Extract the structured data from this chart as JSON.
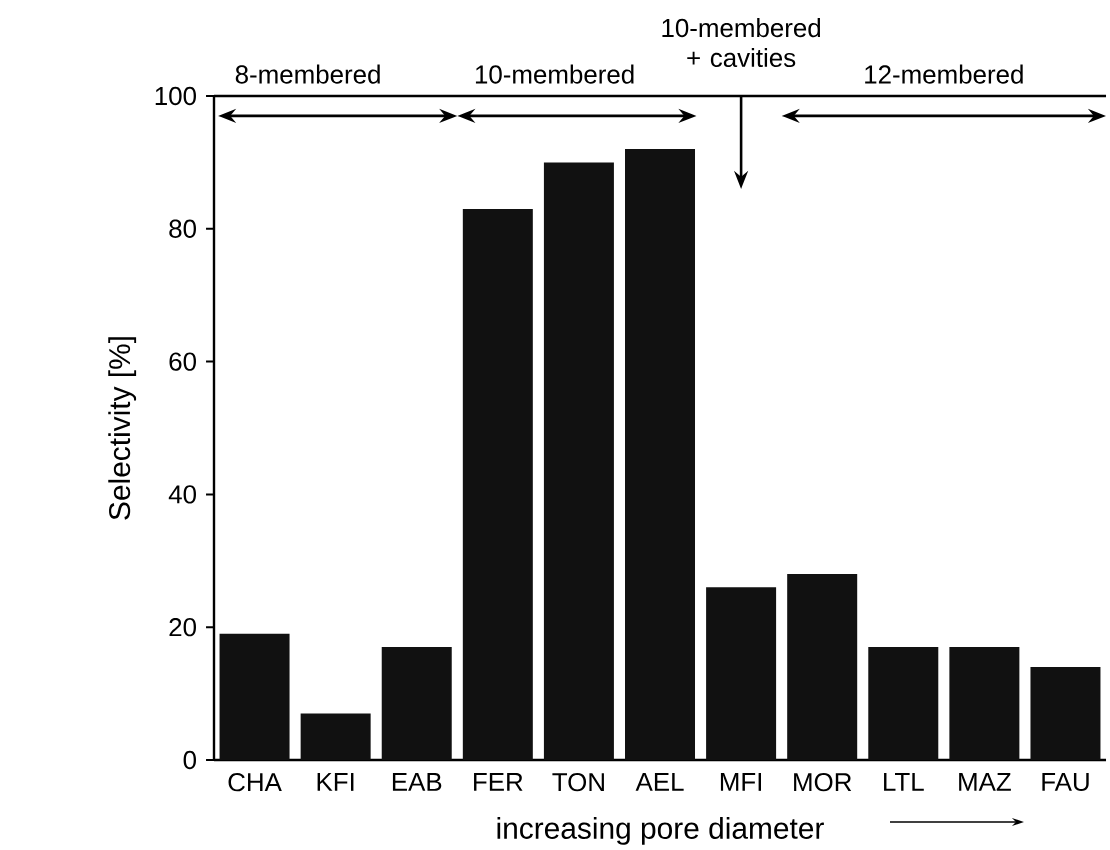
{
  "chart_data": {
    "type": "bar",
    "categories": [
      "CHA",
      "KFI",
      "EAB",
      "FER",
      "TON",
      "AEL",
      "MFI",
      "MOR",
      "LTL",
      "MAZ",
      "FAU"
    ],
    "values": [
      19,
      7,
      17,
      83,
      90,
      92,
      26,
      28,
      17,
      17,
      14
    ],
    "color": "#111111",
    "xlabel": "increasing pore diameter",
    "ylabel": "Selectivity [%]",
    "ylim": [
      0,
      100
    ],
    "yticks": [
      0,
      20,
      40,
      60,
      80,
      100
    ],
    "annotations": [
      "8-membered",
      "10-membered",
      "10-membered + cavities",
      "12-membered"
    ]
  }
}
